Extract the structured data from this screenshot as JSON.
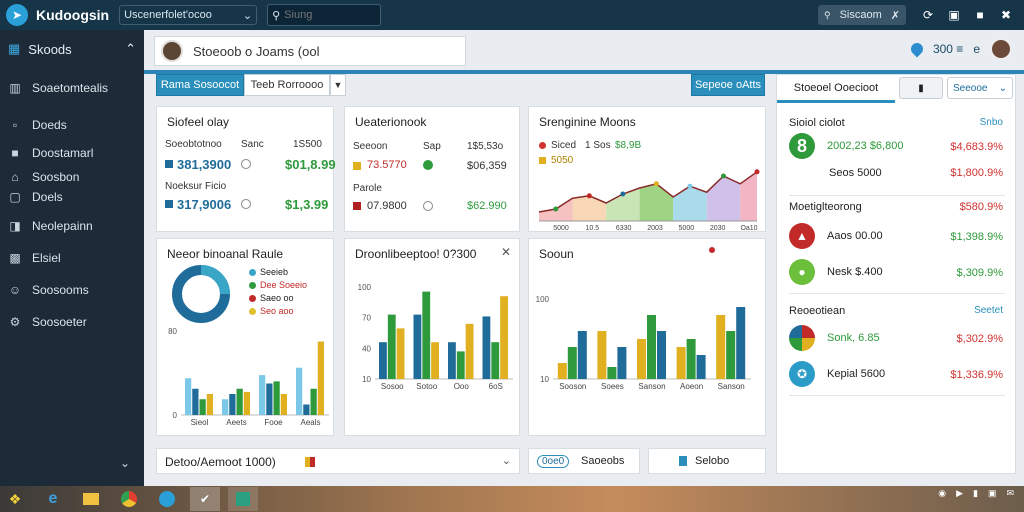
{
  "app": {
    "title": "Kudoogsin",
    "workspace": "Uscenerfolet'ocoo",
    "search_placeholder": "Siung"
  },
  "top_right": {
    "search_label": "Siscaom",
    "icons": [
      "refresh-icon",
      "window-icon",
      "save-icon",
      "close-icon"
    ]
  },
  "sidebar": {
    "header": "Skoods",
    "items": [
      {
        "label": "Soaetomtealis",
        "icon": "building-icon"
      },
      {
        "label": "Doeds",
        "icon": "document-icon"
      },
      {
        "label": "Doostamarl",
        "icon": "file-icon"
      },
      {
        "label": "Soosbon",
        "icon": "home-icon"
      },
      {
        "label": "Doels",
        "icon": "book-icon"
      },
      {
        "label": "Neolepainn",
        "icon": "calendar-icon"
      },
      {
        "label": "Elsiel",
        "icon": "chart-icon"
      },
      {
        "label": "Soosooms",
        "icon": "user-icon"
      },
      {
        "label": "Soosoeter",
        "icon": "settings-icon"
      }
    ]
  },
  "header": {
    "title": "Stoeoob o Joams (ool",
    "badge": "300 ≡",
    "badge_sep": "e"
  },
  "toolbar": {
    "left_primary": "Rama Sosoocot",
    "left_secondary": "Teeb Rorroooo",
    "right_primary": "Sepeoe oAtts"
  },
  "card1": {
    "title": "Siofeel olay",
    "col1": "Soeobtotnoo",
    "col2": "Sanc",
    "col3": "1S500",
    "row1_val": "381,3900",
    "row1_val2": "$01,8.99",
    "row2_label": "Noeksur Ficio",
    "row2_val": "317,9006",
    "row2_val2": "$1,3.99"
  },
  "card2": {
    "title": "Ueaterionook",
    "col1": "Seeoon",
    "col2": "Sap",
    "col3": "1$5,53o",
    "row1_val": "73.5770",
    "row1_val2": "$06,359",
    "row2_label": "Parole",
    "row2_val": "07.9800",
    "row2_val2": "$62.990"
  },
  "card3": {
    "title": "Srenginine Moons",
    "leg1": "Siced",
    "leg1_val": "1 Sos",
    "leg1_val2": "$8,9B",
    "leg2": "5050"
  },
  "card4": {
    "title": "Neeor binoanal Raule",
    "legend": [
      "Seeieb",
      "Dee Soeeio",
      "Saeo oo",
      "Seo aoo"
    ]
  },
  "card5": {
    "title": "Droonlibeeptoo! 0?300"
  },
  "card6": {
    "title": "Sooun"
  },
  "right_panel": {
    "tab_active": "Stoeoel Ooecioot",
    "filter": "Seeooe",
    "sec1": "Sioiol ciolot",
    "sec1_link": "Snbo",
    "sec2": "Moetiglteorong",
    "sec2_link": "",
    "sec3": "Reoeotiean",
    "sec3_link": "Seetet",
    "rows": [
      {
        "name": "2002,23 $6,800",
        "value": "$4,683.9%"
      },
      {
        "name": "Seos 5000",
        "value": "$1,800.9%"
      },
      {
        "name": "Aaos 00.00",
        "value": "$1,398.9%"
      },
      {
        "name": "Nesk $.400",
        "value": "$,309.9%"
      },
      {
        "name": "Sonk, 6.85",
        "value": "$,302.9%"
      },
      {
        "name": "Kepial 5600",
        "value": "$1,336.9%"
      }
    ],
    "row2_val": "$580.9%"
  },
  "bottom": {
    "left": "Detoo/Aemoot 1000)",
    "mid_badge": "0oe0",
    "mid": "Saoeobs",
    "right": "Selobo"
  },
  "chart_data": [
    {
      "type": "bar",
      "categories": [
        "Sieol",
        "Aeets",
        "Fooe",
        "Aeals"
      ],
      "series": [
        {
          "values": [
            35,
            15,
            38,
            45
          ]
        },
        {
          "values": [
            25,
            20,
            30,
            10
          ]
        },
        {
          "values": [
            15,
            25,
            32,
            25
          ]
        },
        {
          "values": [
            20,
            22,
            20,
            70
          ]
        }
      ],
      "ylim": [
        0,
        80
      ],
      "yticks": [
        "80",
        "0"
      ]
    },
    {
      "type": "line",
      "xlabels": [
        "5000",
        "10.5",
        "6330",
        "2003",
        "5000",
        "2030",
        "Oa10"
      ],
      "values": [
        15,
        20,
        38,
        42,
        30,
        45,
        55,
        62,
        40,
        58,
        48,
        75,
        62,
        82
      ]
    },
    {
      "type": "bar",
      "categories": [
        "Sosoo",
        "Sotoo",
        "Ooo",
        "6oS"
      ],
      "series": [
        {
          "values": [
            40,
            70,
            40,
            68
          ]
        },
        {
          "values": [
            70,
            95,
            30,
            40
          ]
        },
        {
          "values": [
            55,
            40,
            60,
            90
          ]
        }
      ],
      "ylim": [
        0,
        100
      ],
      "yticks": [
        "100",
        "70",
        "40",
        "10"
      ]
    },
    {
      "type": "bar",
      "categories": [
        "Sooson",
        "Soees",
        "Sanson",
        "Aoeon",
        "Sanson"
      ],
      "series": [
        {
          "values": [
            20,
            60,
            50,
            40,
            80
          ]
        },
        {
          "values": [
            40,
            15,
            80,
            50,
            60
          ]
        },
        {
          "values": [
            60,
            40,
            60,
            30,
            90
          ]
        }
      ],
      "ylim": [
        0,
        100
      ],
      "yticks": [
        "100",
        "10"
      ]
    }
  ]
}
